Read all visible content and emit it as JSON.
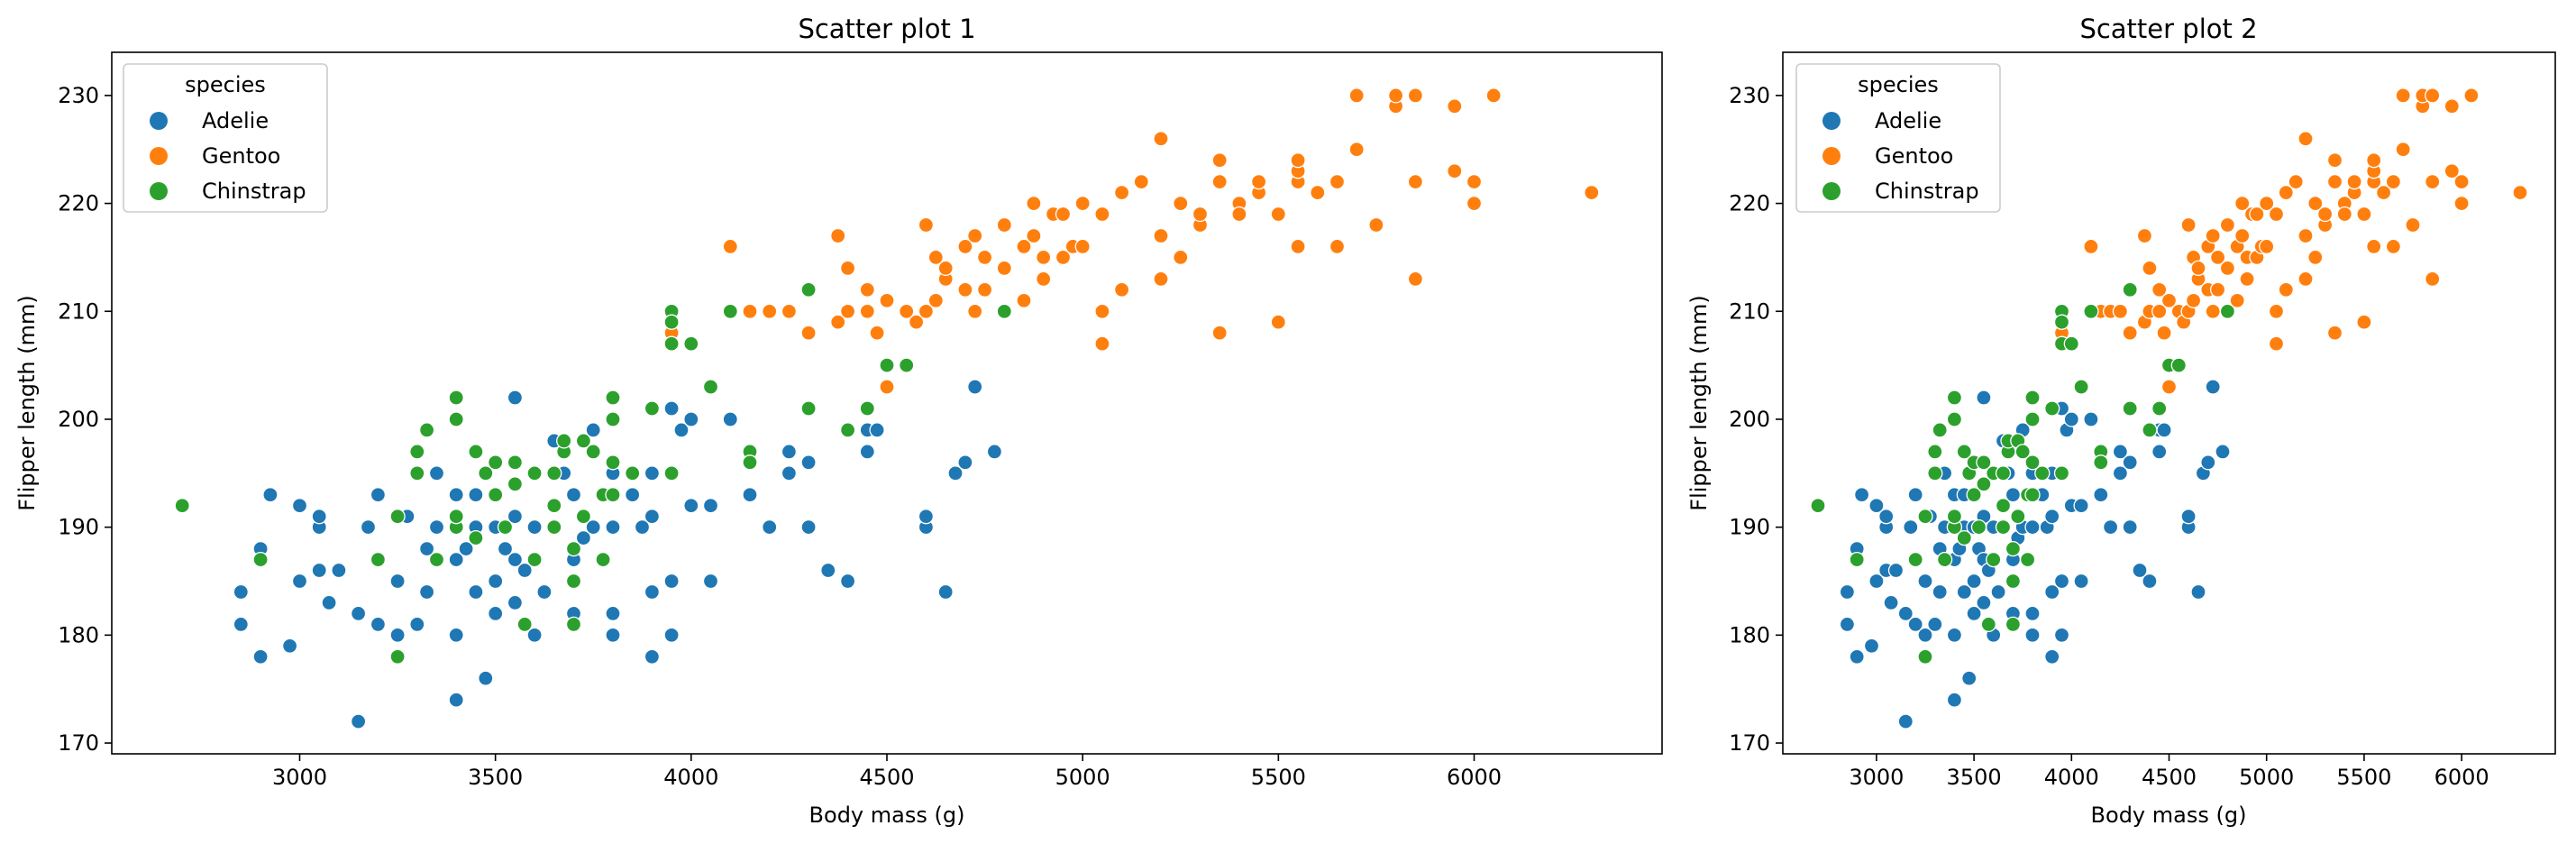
{
  "chart_data": [
    {
      "type": "scatter",
      "title": "Scatter plot 1",
      "xlabel": "Body mass (g)",
      "ylabel": "Flipper length (mm)",
      "xlim": [
        2520,
        6480
      ],
      "ylim": [
        169,
        234
      ],
      "xticks": [
        3000,
        3500,
        4000,
        4500,
        5000,
        5500,
        6000
      ],
      "yticks": [
        170,
        180,
        190,
        200,
        210,
        220,
        230
      ],
      "legend": {
        "title": "species",
        "placement": "top-left"
      },
      "grid": false,
      "series": [
        {
          "name": "Adelie",
          "color": "#1f77b4",
          "x": [
            2850,
            2850,
            2900,
            2900,
            2925,
            2975,
            3000,
            3000,
            3050,
            3050,
            3050,
            3075,
            3100,
            3150,
            3150,
            3175,
            3200,
            3200,
            3200,
            3250,
            3250,
            3275,
            3300,
            3300,
            3325,
            3325,
            3350,
            3350,
            3350,
            3400,
            3400,
            3400,
            3400,
            3400,
            3425,
            3450,
            3450,
            3450,
            3475,
            3475,
            3500,
            3500,
            3500,
            3525,
            3550,
            3550,
            3550,
            3550,
            3575,
            3600,
            3600,
            3625,
            3650,
            3650,
            3675,
            3700,
            3700,
            3700,
            3700,
            3725,
            3750,
            3750,
            3775,
            3800,
            3800,
            3800,
            3800,
            3800,
            3850,
            3875,
            3900,
            3900,
            3900,
            3900,
            3950,
            3950,
            3950,
            3975,
            4000,
            4000,
            4050,
            4050,
            4100,
            4150,
            4150,
            4200,
            4250,
            4250,
            4300,
            4300,
            4350,
            4400,
            4450,
            4450,
            4475,
            4600,
            4600,
            4650,
            4675,
            4700,
            4725,
            4775
          ],
          "y": [
            181,
            184,
            178,
            188,
            193,
            179,
            185,
            192,
            186,
            190,
            191,
            183,
            186,
            182,
            172,
            190,
            181,
            187,
            193,
            180,
            185,
            191,
            181,
            195,
            184,
            188,
            187,
            190,
            195,
            174,
            180,
            190,
            193,
            187,
            188,
            184,
            190,
            193,
            176,
            195,
            182,
            185,
            190,
            188,
            183,
            187,
            191,
            202,
            186,
            180,
            190,
            184,
            190,
            198,
            195,
            181,
            182,
            187,
            193,
            189,
            190,
            199,
            187,
            180,
            182,
            190,
            196,
            195,
            193,
            190,
            178,
            184,
            191,
            195,
            180,
            185,
            201,
            199,
            192,
            200,
            185,
            192,
            200,
            193,
            196,
            190,
            197,
            195,
            196,
            190,
            186,
            185,
            197,
            199,
            199,
            190,
            191,
            184,
            195,
            196,
            203,
            197
          ]
        },
        {
          "name": "Gentoo",
          "color": "#ff7f0e",
          "x": [
            3950,
            4100,
            4150,
            4200,
            4250,
            4300,
            4300,
            4375,
            4375,
            4400,
            4400,
            4450,
            4450,
            4475,
            4500,
            4500,
            4550,
            4575,
            4600,
            4600,
            4625,
            4625,
            4650,
            4650,
            4700,
            4700,
            4725,
            4725,
            4750,
            4750,
            4800,
            4800,
            4850,
            4850,
            4875,
            4875,
            4900,
            4900,
            4925,
            4950,
            4950,
            4975,
            5000,
            5000,
            5050,
            5050,
            5050,
            5100,
            5100,
            5150,
            5200,
            5200,
            5200,
            5250,
            5250,
            5300,
            5300,
            5350,
            5350,
            5350,
            5400,
            5400,
            5450,
            5450,
            5500,
            5500,
            5550,
            5550,
            5550,
            5550,
            5600,
            5650,
            5650,
            5700,
            5700,
            5750,
            5800,
            5800,
            5850,
            5850,
            5850,
            5950,
            5950,
            6000,
            6000,
            6050,
            6300
          ],
          "y": [
            208,
            216,
            210,
            210,
            210,
            208,
            212,
            209,
            217,
            210,
            214,
            212,
            210,
            208,
            211,
            203,
            210,
            209,
            218,
            210,
            211,
            215,
            213,
            214,
            212,
            216,
            210,
            217,
            215,
            212,
            214,
            218,
            211,
            216,
            217,
            220,
            215,
            213,
            219,
            219,
            215,
            216,
            216,
            220,
            210,
            219,
            207,
            212,
            221,
            222,
            213,
            217,
            226,
            215,
            220,
            218,
            219,
            222,
            224,
            208,
            220,
            219,
            221,
            222,
            209,
            219,
            216,
            222,
            223,
            224,
            221,
            216,
            222,
            230,
            225,
            218,
            229,
            230,
            213,
            222,
            230,
            223,
            229,
            222,
            220,
            230,
            221
          ]
        },
        {
          "name": "Chinstrap",
          "color": "#2ca02c",
          "x": [
            2700,
            2900,
            3200,
            3250,
            3250,
            3300,
            3300,
            3325,
            3350,
            3400,
            3400,
            3400,
            3400,
            3450,
            3450,
            3475,
            3500,
            3500,
            3525,
            3550,
            3550,
            3575,
            3600,
            3600,
            3650,
            3650,
            3650,
            3675,
            3675,
            3700,
            3700,
            3700,
            3725,
            3725,
            3750,
            3775,
            3775,
            3800,
            3800,
            3800,
            3800,
            3850,
            3900,
            3950,
            3950,
            3950,
            3950,
            4000,
            4050,
            4100,
            4150,
            4150,
            4300,
            4300,
            4400,
            4450,
            4500,
            4550,
            4800
          ],
          "y": [
            192,
            187,
            187,
            178,
            191,
            197,
            195,
            199,
            187,
            202,
            200,
            190,
            191,
            197,
            189,
            195,
            193,
            196,
            190,
            194,
            196,
            181,
            187,
            195,
            195,
            192,
            190,
            197,
            198,
            188,
            181,
            185,
            191,
            198,
            197,
            193,
            187,
            193,
            196,
            202,
            200,
            195,
            201,
            195,
            210,
            207,
            209,
            207,
            203,
            210,
            197,
            196,
            212,
            201,
            199,
            201,
            205,
            205,
            210
          ]
        }
      ]
    },
    {
      "type": "scatter",
      "title": "Scatter plot 2",
      "xlabel": "Body mass (g)",
      "ylabel": "Flipper length (mm)",
      "xlim": [
        2520,
        6480
      ],
      "ylim": [
        169,
        234
      ],
      "xticks": [
        3000,
        3500,
        4000,
        4500,
        5000,
        5500,
        6000
      ],
      "yticks": [
        170,
        180,
        190,
        200,
        210,
        220,
        230
      ],
      "legend": {
        "title": "species",
        "placement": "top-left"
      },
      "grid": false,
      "series_same_as_chart": 0
    }
  ]
}
